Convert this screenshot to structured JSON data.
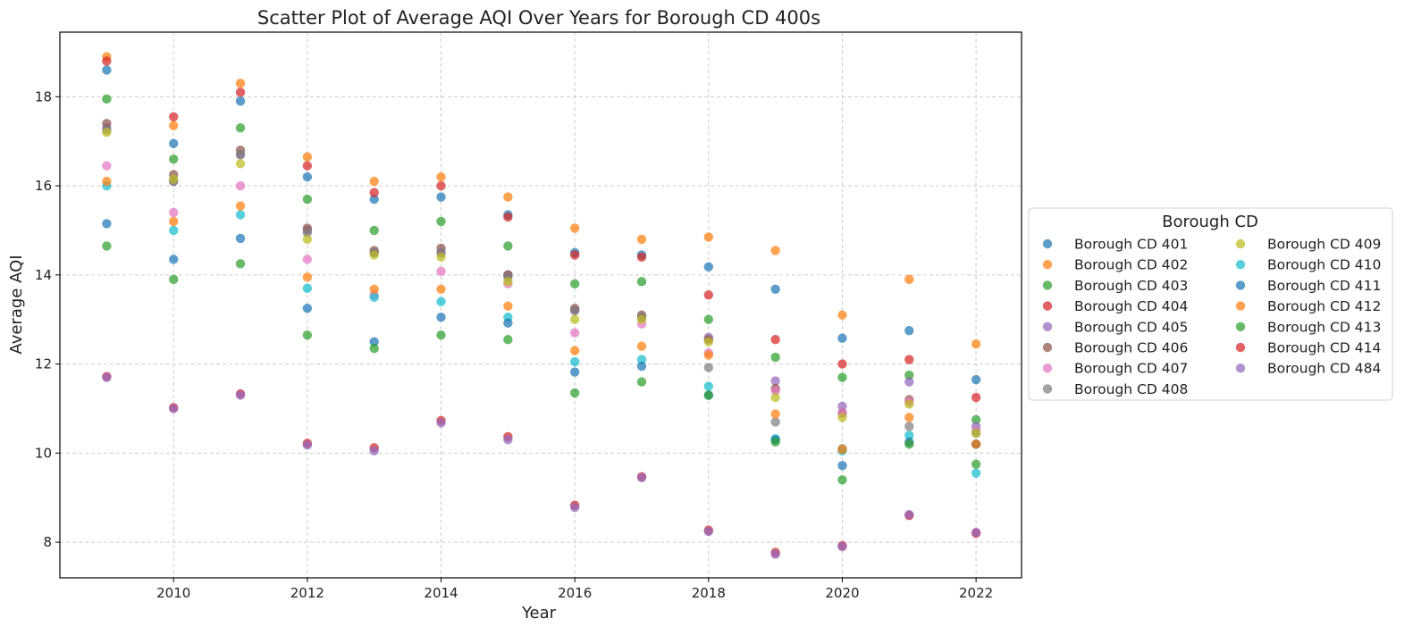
{
  "chart_data": {
    "type": "scatter",
    "title": "Scatter Plot of Average AQI Over Years for Borough CD 400s",
    "xlabel": "Year",
    "ylabel": "Average AQI",
    "xlim": [
      2008.3,
      2022.68
    ],
    "ylim": [
      7.2,
      19.45
    ],
    "xticks": [
      2010,
      2012,
      2014,
      2016,
      2018,
      2020,
      2022
    ],
    "yticks": [
      8,
      10,
      12,
      14,
      16,
      18
    ],
    "grid": true,
    "legend": {
      "title": "Borough CD",
      "placement": "center-right outside",
      "columns": 2
    },
    "x": [
      2009,
      2010,
      2011,
      2012,
      2013,
      2014,
      2015,
      2016,
      2017,
      2018,
      2019,
      2020,
      2021,
      2022
    ],
    "series": [
      {
        "name": "Borough CD 401",
        "color": "#1f77b4",
        "values": [
          18.6,
          16.95,
          17.9,
          16.2,
          15.7,
          15.75,
          15.35,
          14.5,
          14.45,
          14.18,
          13.68,
          12.58,
          12.75,
          11.65
        ]
      },
      {
        "name": "Borough CD 402",
        "color": "#ff7f0e",
        "values": [
          18.9,
          17.35,
          18.3,
          16.65,
          16.1,
          16.2,
          15.75,
          15.05,
          14.8,
          14.85,
          14.55,
          13.1,
          13.9,
          12.45
        ]
      },
      {
        "name": "Borough CD 403",
        "color": "#2ca02c",
        "values": [
          17.95,
          16.6,
          17.3,
          15.7,
          15.0,
          15.2,
          14.65,
          13.8,
          13.85,
          13.0,
          12.15,
          11.7,
          11.75,
          10.75
        ]
      },
      {
        "name": "Borough CD 404",
        "color": "#d62728",
        "values": [
          18.8,
          17.55,
          18.1,
          16.45,
          15.85,
          16.0,
          15.3,
          14.45,
          14.4,
          13.55,
          12.55,
          12.0,
          12.1,
          11.25
        ]
      },
      {
        "name": "Borough CD 405",
        "color": "#9467bd",
        "values": [
          17.3,
          16.1,
          16.7,
          15.0,
          14.5,
          14.5,
          14.0,
          13.2,
          13.05,
          12.6,
          11.62,
          11.05,
          11.6,
          10.6
        ]
      },
      {
        "name": "Borough CD 406",
        "color": "#8c564b",
        "values": [
          17.4,
          16.25,
          16.8,
          15.05,
          14.55,
          14.6,
          14.0,
          13.25,
          13.1,
          12.55,
          11.45,
          10.9,
          11.2,
          10.2
        ]
      },
      {
        "name": "Borough CD 407",
        "color": "#e377c2",
        "values": [
          16.45,
          15.4,
          16.0,
          14.35,
          13.55,
          14.08,
          13.8,
          12.7,
          12.9,
          12.25,
          11.4,
          10.9,
          11.15,
          10.5
        ]
      },
      {
        "name": "Borough CD 408",
        "color": "#7f7f7f",
        "values": [
          17.25,
          16.1,
          16.7,
          14.95,
          14.5,
          14.5,
          13.95,
          13.2,
          13.05,
          11.92,
          10.7,
          10.1,
          10.6,
          10.45
        ]
      },
      {
        "name": "Borough CD 409",
        "color": "#bcbd22",
        "values": [
          17.2,
          16.15,
          16.5,
          14.8,
          14.45,
          14.4,
          13.85,
          13.0,
          13.0,
          12.5,
          11.25,
          10.8,
          11.1,
          10.45
        ]
      },
      {
        "name": "Borough CD 410",
        "color": "#17becf",
        "values": [
          16.0,
          15.0,
          15.35,
          13.7,
          13.5,
          13.4,
          13.05,
          12.05,
          12.1,
          11.5,
          10.32,
          10.05,
          10.4,
          9.55
        ]
      },
      {
        "name": "Borough CD 411",
        "color": "#1f77b4",
        "values": [
          15.15,
          14.35,
          14.82,
          13.25,
          12.5,
          13.05,
          12.92,
          11.82,
          11.95,
          11.3,
          10.3,
          9.72,
          10.25,
          10.2
        ]
      },
      {
        "name": "Borough CD 412",
        "color": "#ff7f0e",
        "values": [
          16.1,
          15.2,
          15.55,
          13.95,
          13.68,
          13.68,
          13.3,
          12.3,
          12.4,
          12.2,
          10.88,
          10.08,
          10.8,
          10.2
        ]
      },
      {
        "name": "Borough CD 413",
        "color": "#2ca02c",
        "values": [
          14.65,
          13.9,
          14.25,
          12.65,
          12.35,
          12.65,
          12.55,
          11.35,
          11.6,
          11.3,
          10.25,
          9.4,
          10.2,
          9.75
        ]
      },
      {
        "name": "Borough CD 414",
        "color": "#d62728",
        "values": [
          11.72,
          11.02,
          11.33,
          10.22,
          10.12,
          10.73,
          10.37,
          8.83,
          9.47,
          8.27,
          7.77,
          7.92,
          8.6,
          8.2
        ]
      },
      {
        "name": "Borough CD 484",
        "color": "#9467bd",
        "values": [
          11.7,
          11.0,
          11.3,
          10.18,
          10.05,
          10.68,
          10.3,
          8.78,
          9.45,
          8.24,
          7.73,
          7.9,
          8.62,
          8.22
        ]
      }
    ]
  }
}
